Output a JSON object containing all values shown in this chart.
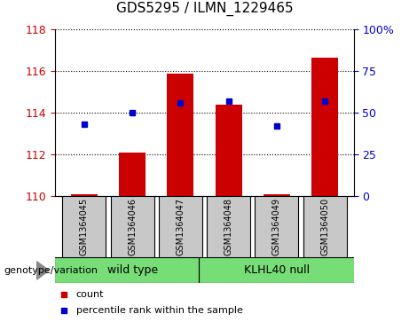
{
  "title": "GDS5295 / ILMN_1229465",
  "categories": [
    "GSM1364045",
    "GSM1364046",
    "GSM1364047",
    "GSM1364048",
    "GSM1364049",
    "GSM1364050"
  ],
  "bar_values": [
    110.1,
    112.1,
    115.85,
    114.4,
    110.1,
    116.65
  ],
  "bar_base": 110,
  "bar_color": "#cc0000",
  "dot_values": [
    43,
    50,
    56,
    57,
    42,
    57
  ],
  "dot_color": "#0000cc",
  "ylim_left": [
    110,
    118
  ],
  "ylim_right": [
    0,
    100
  ],
  "yticks_left": [
    110,
    112,
    114,
    116,
    118
  ],
  "yticks_right": [
    0,
    25,
    50,
    75,
    100
  ],
  "ytick_labels_right": [
    "0",
    "25",
    "50",
    "75",
    "100%"
  ],
  "group1_label": "wild type",
  "group2_label": "KLHL40 null",
  "group1_indices": [
    0,
    1,
    2
  ],
  "group2_indices": [
    3,
    4,
    5
  ],
  "group_color": "#77dd77",
  "genotype_label": "genotype/variation",
  "legend_items": [
    "count",
    "percentile rank within the sample"
  ],
  "bar_width": 0.55,
  "tick_color_left": "#cc0000",
  "tick_color_right": "#0000cc",
  "label_box_color": "#c8c8c8",
  "title_fontsize": 11,
  "axis_fontsize": 9,
  "legend_fontsize": 8,
  "cat_fontsize": 7,
  "group_fontsize": 9
}
